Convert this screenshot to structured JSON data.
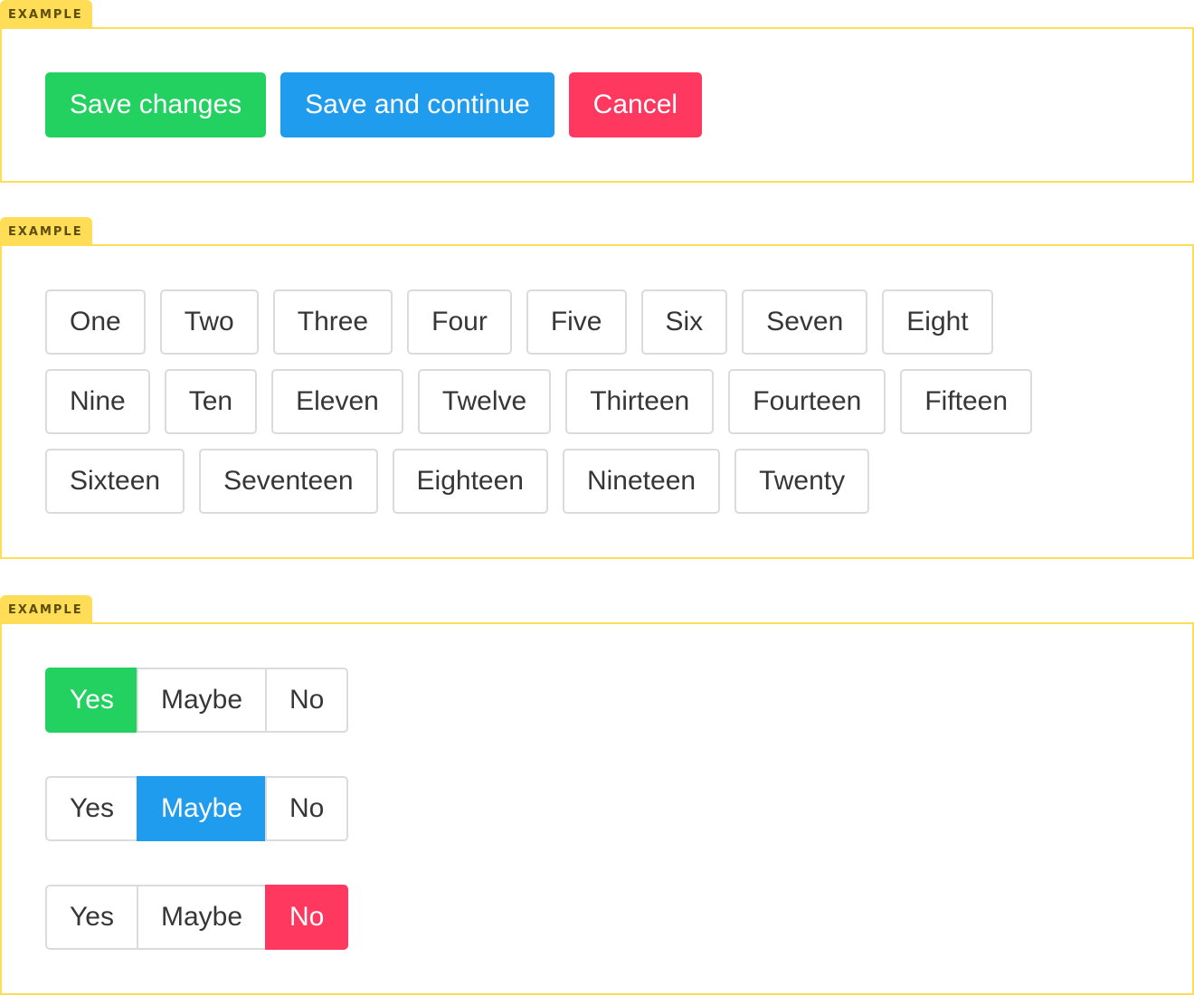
{
  "example_label": "EXAMPLE",
  "colors": {
    "success": "#23d160",
    "info": "#209cee",
    "danger": "#ff3860",
    "example_accent": "#ffdd57"
  },
  "actions": {
    "save": "Save changes",
    "save_continue": "Save and continue",
    "cancel": "Cancel"
  },
  "tags": [
    "One",
    "Two",
    "Three",
    "Four",
    "Five",
    "Six",
    "Seven",
    "Eight",
    "Nine",
    "Ten",
    "Eleven",
    "Twelve",
    "Thirteen",
    "Fourteen",
    "Fifteen",
    "Sixteen",
    "Seventeen",
    "Eighteen",
    "Nineteen",
    "Twenty"
  ],
  "segments": [
    {
      "options": [
        "Yes",
        "Maybe",
        "No"
      ],
      "selected": "Yes",
      "color": "green"
    },
    {
      "options": [
        "Yes",
        "Maybe",
        "No"
      ],
      "selected": "Maybe",
      "color": "blue"
    },
    {
      "options": [
        "Yes",
        "Maybe",
        "No"
      ],
      "selected": "No",
      "color": "red"
    }
  ]
}
